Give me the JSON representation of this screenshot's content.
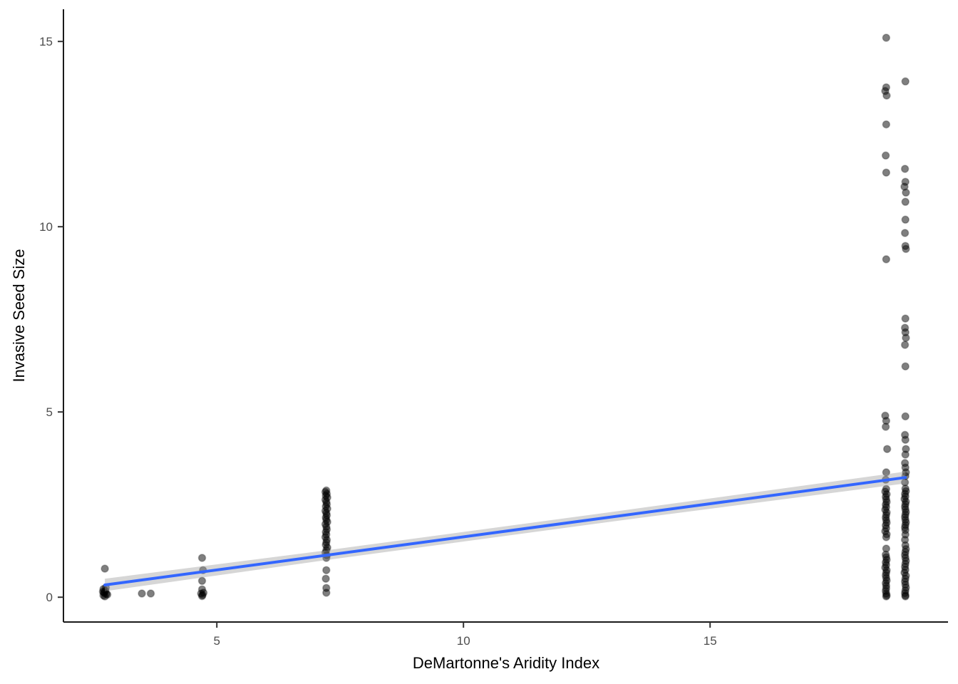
{
  "chart_data": {
    "type": "scatter",
    "title": "",
    "xlabel": "DeMartonne's Aridity Index",
    "ylabel": "Invasive Seed Size",
    "x_ticks": [
      5,
      10,
      15
    ],
    "y_ticks": [
      0,
      5,
      10,
      15
    ],
    "xlim": [
      1.89,
      19.83
    ],
    "ylim": [
      -0.67,
      15.87
    ],
    "grid": false,
    "legend": false,
    "theme": "classic-white",
    "colors": {
      "point": "#000000",
      "point_opacity": 0.5,
      "regression_line": "#3366FF",
      "confidence_band": "#999999",
      "confidence_band_opacity": 0.4,
      "axis_line": "#1a1a1a",
      "tick_label": "#4d4d4d",
      "axis_title": "#000000"
    },
    "point_radius": 5,
    "regression_line": {
      "x1": 2.73,
      "y1": 0.33,
      "x2": 18.96,
      "y2": 3.23
    },
    "confidence_band_stops": [
      {
        "x": 2.73,
        "y": 0.33,
        "half_width": 0.17
      },
      {
        "x": 7.2,
        "y": 1.13,
        "half_width": 0.13
      },
      {
        "x": 13.0,
        "y": 2.17,
        "half_width": 0.13
      },
      {
        "x": 18.96,
        "y": 3.23,
        "half_width": 0.16
      }
    ],
    "points": [
      [
        2.7,
        0.05
      ],
      [
        2.73,
        0.02
      ],
      [
        2.76,
        0.09
      ],
      [
        2.71,
        0.13
      ],
      [
        2.74,
        0.17
      ],
      [
        2.7,
        0.22
      ],
      [
        2.75,
        0.26
      ],
      [
        2.78,
        0.07
      ],
      [
        2.72,
        0.11
      ],
      [
        2.69,
        0.15
      ],
      [
        2.73,
        0.77
      ],
      [
        3.48,
        0.1
      ],
      [
        3.66,
        0.1
      ],
      [
        4.7,
        1.06
      ],
      [
        4.72,
        0.73
      ],
      [
        4.7,
        0.44
      ],
      [
        4.7,
        0.21
      ],
      [
        4.68,
        0.1
      ],
      [
        4.71,
        0.06
      ],
      [
        4.73,
        0.12
      ],
      [
        4.7,
        0.03
      ],
      [
        7.22,
        2.88
      ],
      [
        7.2,
        2.84
      ],
      [
        7.23,
        2.79
      ],
      [
        7.21,
        2.74
      ],
      [
        7.24,
        2.69
      ],
      [
        7.2,
        2.63
      ],
      [
        7.22,
        2.57
      ],
      [
        7.23,
        2.51
      ],
      [
        7.21,
        2.45
      ],
      [
        7.24,
        2.39
      ],
      [
        7.2,
        2.33
      ],
      [
        7.22,
        2.27
      ],
      [
        7.23,
        2.21
      ],
      [
        7.21,
        2.15
      ],
      [
        7.22,
        2.09
      ],
      [
        7.24,
        2.03
      ],
      [
        7.2,
        1.97
      ],
      [
        7.22,
        1.9
      ],
      [
        7.23,
        1.83
      ],
      [
        7.21,
        1.76
      ],
      [
        7.22,
        1.69
      ],
      [
        7.2,
        1.62
      ],
      [
        7.23,
        1.55
      ],
      [
        7.22,
        1.48
      ],
      [
        7.21,
        1.41
      ],
      [
        7.24,
        1.34
      ],
      [
        7.22,
        1.27
      ],
      [
        7.2,
        1.2
      ],
      [
        7.23,
        1.13
      ],
      [
        7.22,
        1.06
      ],
      [
        7.22,
        0.73
      ],
      [
        7.21,
        0.5
      ],
      [
        7.22,
        0.25
      ],
      [
        7.22,
        0.12
      ],
      [
        18.57,
        15.1
      ],
      [
        18.57,
        13.76
      ],
      [
        18.55,
        13.66
      ],
      [
        18.58,
        13.54
      ],
      [
        18.57,
        12.76
      ],
      [
        18.56,
        11.92
      ],
      [
        18.57,
        11.46
      ],
      [
        18.57,
        9.12
      ],
      [
        18.55,
        4.9
      ],
      [
        18.57,
        4.76
      ],
      [
        18.56,
        4.6
      ],
      [
        18.59,
        4.0
      ],
      [
        18.57,
        3.37
      ],
      [
        18.56,
        3.17
      ],
      [
        18.57,
        2.92
      ],
      [
        18.55,
        2.85
      ],
      [
        18.58,
        2.78
      ],
      [
        18.56,
        2.71
      ],
      [
        18.57,
        2.64
      ],
      [
        18.58,
        2.57
      ],
      [
        18.56,
        2.5
      ],
      [
        18.57,
        2.43
      ],
      [
        18.55,
        2.36
      ],
      [
        18.58,
        2.29
      ],
      [
        18.57,
        2.22
      ],
      [
        18.56,
        2.15
      ],
      [
        18.57,
        2.08
      ],
      [
        18.58,
        2.01
      ],
      [
        18.56,
        1.94
      ],
      [
        18.57,
        1.86
      ],
      [
        18.55,
        1.78
      ],
      [
        18.58,
        1.7
      ],
      [
        18.57,
        1.62
      ],
      [
        18.57,
        1.31
      ],
      [
        18.56,
        1.15
      ],
      [
        18.57,
        1.08
      ],
      [
        18.58,
        1.01
      ],
      [
        18.56,
        0.94
      ],
      [
        18.57,
        0.87
      ],
      [
        18.55,
        0.8
      ],
      [
        18.58,
        0.73
      ],
      [
        18.57,
        0.66
      ],
      [
        18.56,
        0.59
      ],
      [
        18.57,
        0.52
      ],
      [
        18.58,
        0.45
      ],
      [
        18.56,
        0.38
      ],
      [
        18.57,
        0.31
      ],
      [
        18.57,
        0.24
      ],
      [
        18.56,
        0.17
      ],
      [
        18.57,
        0.1
      ],
      [
        18.58,
        0.05
      ],
      [
        18.57,
        0.02
      ],
      [
        18.96,
        13.92
      ],
      [
        18.95,
        11.56
      ],
      [
        18.96,
        11.21
      ],
      [
        18.94,
        11.08
      ],
      [
        18.97,
        10.92
      ],
      [
        18.96,
        10.67
      ],
      [
        18.96,
        10.19
      ],
      [
        18.95,
        9.83
      ],
      [
        18.96,
        9.48
      ],
      [
        18.97,
        9.4
      ],
      [
        18.96,
        7.52
      ],
      [
        18.95,
        7.27
      ],
      [
        18.96,
        7.15
      ],
      [
        18.97,
        7.0
      ],
      [
        18.95,
        6.81
      ],
      [
        18.96,
        6.23
      ],
      [
        18.96,
        4.88
      ],
      [
        18.95,
        4.38
      ],
      [
        18.96,
        4.25
      ],
      [
        18.97,
        4.0
      ],
      [
        18.96,
        3.85
      ],
      [
        18.95,
        3.62
      ],
      [
        18.96,
        3.5
      ],
      [
        18.97,
        3.37
      ],
      [
        18.96,
        3.27
      ],
      [
        18.95,
        3.1
      ],
      [
        18.96,
        2.93
      ],
      [
        18.97,
        2.86
      ],
      [
        18.95,
        2.79
      ],
      [
        18.96,
        2.72
      ],
      [
        18.94,
        2.65
      ],
      [
        18.97,
        2.58
      ],
      [
        18.96,
        2.51
      ],
      [
        18.95,
        2.44
      ],
      [
        18.96,
        2.37
      ],
      [
        18.97,
        2.3
      ],
      [
        18.96,
        2.23
      ],
      [
        18.95,
        2.16
      ],
      [
        18.96,
        2.09
      ],
      [
        18.97,
        2.02
      ],
      [
        18.96,
        1.95
      ],
      [
        18.95,
        1.88
      ],
      [
        18.96,
        1.81
      ],
      [
        18.96,
        1.69
      ],
      [
        18.95,
        1.55
      ],
      [
        18.96,
        1.4
      ],
      [
        18.97,
        1.3
      ],
      [
        18.96,
        1.22
      ],
      [
        18.95,
        1.14
      ],
      [
        18.96,
        1.06
      ],
      [
        18.97,
        0.98
      ],
      [
        18.96,
        0.9
      ],
      [
        18.95,
        0.82
      ],
      [
        18.96,
        0.74
      ],
      [
        18.94,
        0.66
      ],
      [
        18.97,
        0.58
      ],
      [
        18.96,
        0.5
      ],
      [
        18.95,
        0.42
      ],
      [
        18.96,
        0.34
      ],
      [
        18.97,
        0.26
      ],
      [
        18.96,
        0.18
      ],
      [
        18.95,
        0.11
      ],
      [
        18.96,
        0.05
      ],
      [
        18.96,
        0.02
      ]
    ]
  }
}
